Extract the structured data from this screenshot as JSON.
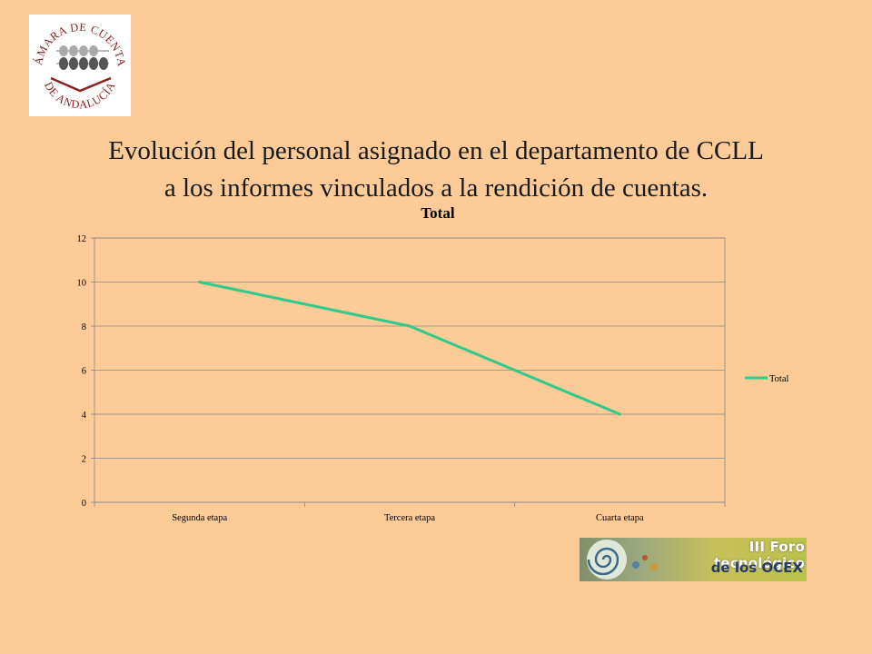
{
  "logo": {
    "text_top": "CÁMARA DE CUENTAS",
    "text_bottom": "DE ANDALUCÍA",
    "color": "#8b1f1f"
  },
  "slide": {
    "title_line1": "Evolución del personal asignado en el departamento de CCLL",
    "title_line2": "a los informes vinculados a la rendición de cuentas."
  },
  "banner": {
    "line1": "III Foro tecnológico",
    "line2": "de los OCEX"
  },
  "chart_data": {
    "type": "line",
    "title": "Total",
    "categories": [
      "Segunda etapa",
      "Tercera etapa",
      "Cuarta etapa"
    ],
    "series": [
      {
        "name": "Total",
        "values": [
          10,
          8,
          4
        ],
        "color": "#2ecb8a"
      }
    ],
    "ylim": [
      0,
      12
    ],
    "yticks": [
      0,
      2,
      4,
      6,
      8,
      10,
      12
    ],
    "grid": true,
    "legend": "right"
  }
}
